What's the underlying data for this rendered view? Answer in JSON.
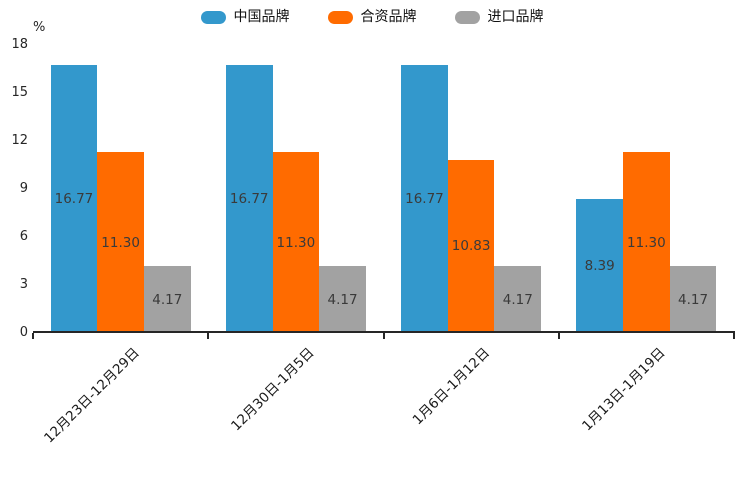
{
  "chart_data": {
    "type": "bar",
    "title": "",
    "ylabel": "%",
    "categories": [
      "12月23日-12月29日",
      "12月30日-1月5日",
      "1月6日-1月12日",
      "1月13日-1月19日"
    ],
    "series": [
      {
        "name": "中国品牌",
        "color": "#3398CC",
        "values": [
          16.77,
          16.77,
          16.77,
          8.39
        ]
      },
      {
        "name": "合资品牌",
        "color": "#FF6B00",
        "values": [
          11.3,
          11.3,
          10.83,
          11.3
        ]
      },
      {
        "name": "进口品牌",
        "color": "#A2A2A2",
        "values": [
          4.17,
          4.17,
          4.17,
          4.17
        ]
      }
    ],
    "value_labels_decimals": 2,
    "y_ticks": [
      0,
      3,
      6,
      9,
      12,
      15,
      18
    ],
    "ylim": [
      0,
      18
    ],
    "legend_position": "top-center",
    "grid": false,
    "axis_color": "#262626",
    "value_label_color": "#3a3a3a",
    "x_label_rotation_deg": -45
  }
}
